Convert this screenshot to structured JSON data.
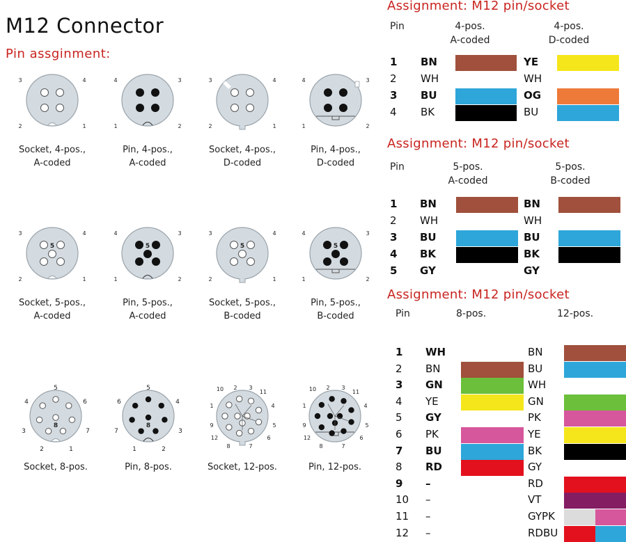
{
  "header": {
    "title": "M12 Connector",
    "subtitle": "Pin assginment:"
  },
  "connectors": [
    {
      "label1": "Socket, 4-pos.,",
      "label2": "A-coded"
    },
    {
      "label1": "Pin, 4-pos.,",
      "label2": "A-coded"
    },
    {
      "label1": "Socket, 4-pos.,",
      "label2": "D-coded"
    },
    {
      "label1": "Pin, 4-pos.,",
      "label2": "D-coded"
    },
    {
      "label1": "Socket, 5-pos.,",
      "label2": "A-coded"
    },
    {
      "label1": "Pin, 5-pos.,",
      "label2": "A-coded"
    },
    {
      "label1": "Socket, 5-pos.,",
      "label2": "B-coded"
    },
    {
      "label1": "Pin, 5-pos.,",
      "label2": "B-coded"
    },
    {
      "label1": "Socket, 8-pos.",
      "label2": ""
    },
    {
      "label1": "Pin, 8-pos.",
      "label2": ""
    },
    {
      "label1": "Socket, 12-pos.",
      "label2": ""
    },
    {
      "label1": "Pin, 12-pos.",
      "label2": ""
    }
  ],
  "pin_numbers": {
    "four": [
      "1",
      "2",
      "3",
      "4"
    ],
    "five": [
      "1",
      "2",
      "3",
      "4",
      "5"
    ],
    "eight": [
      "1",
      "2",
      "3",
      "4",
      "5",
      "6",
      "7",
      "8"
    ],
    "twelve": [
      "1",
      "2",
      "3",
      "4",
      "5",
      "6",
      "7",
      "8",
      "9",
      "10",
      "11",
      "12"
    ]
  },
  "colors": {
    "BN": "#a0503c",
    "YE": "#f5e61c",
    "BU": "#2ea6d9",
    "OG": "#ee7a3a",
    "BK": "#000000",
    "GN": "#6bbf3a",
    "PK": "#d6579c",
    "RD": "#e3111e",
    "VT": "#851d63",
    "GY": "#dcdcdc",
    "accent": "#c8241f"
  },
  "table1": {
    "title": "Assignment: M12 pin/socket",
    "h_pin": "Pin",
    "h_a1": "4-pos.",
    "h_a2": "A-coded",
    "h_b1": "4-pos.",
    "h_b2": "D-coded",
    "rows": [
      {
        "pin": "1",
        "a": "BN",
        "b": "YE"
      },
      {
        "pin": "2",
        "a": "WH",
        "b": "WH"
      },
      {
        "pin": "3",
        "a": "BU",
        "b": "OG"
      },
      {
        "pin": "4",
        "a": "BK",
        "b": "BU"
      }
    ]
  },
  "table2": {
    "title": "Assignment: M12 pin/socket",
    "h_pin": "Pin",
    "h_a1": "5-pos.",
    "h_a2": "A-coded",
    "h_b1": "5-pos.",
    "h_b2": "B-coded",
    "rows": [
      {
        "pin": "1",
        "a": "BN",
        "b": "BN"
      },
      {
        "pin": "2",
        "a": "WH",
        "b": "WH"
      },
      {
        "pin": "3",
        "a": "BU",
        "b": "BU"
      },
      {
        "pin": "4",
        "a": "BK",
        "b": "BK"
      },
      {
        "pin": "5",
        "a": "GY",
        "b": "GY"
      }
    ]
  },
  "table3": {
    "title": "Assignment: M12 pin/socket",
    "h_pin": "Pin",
    "h_a": "8-pos.",
    "h_b": "12-pos.",
    "rows": [
      {
        "pin": "1",
        "a": "WH",
        "b": "BN"
      },
      {
        "pin": "2",
        "a": "BN",
        "b": "BU"
      },
      {
        "pin": "3",
        "a": "GN",
        "b": "WH"
      },
      {
        "pin": "4",
        "a": "YE",
        "b": "GN"
      },
      {
        "pin": "5",
        "a": "GY",
        "b": "PK"
      },
      {
        "pin": "6",
        "a": "PK",
        "b": "YE"
      },
      {
        "pin": "7",
        "a": "BU",
        "b": "BK"
      },
      {
        "pin": "8",
        "a": "RD",
        "b": "GY"
      },
      {
        "pin": "9",
        "a": "–",
        "b": "RD"
      },
      {
        "pin": "10",
        "a": "–",
        "b": "VT"
      },
      {
        "pin": "11",
        "a": "–",
        "b": "GYPK"
      },
      {
        "pin": "12",
        "a": "–",
        "b": "RDBU"
      }
    ]
  }
}
